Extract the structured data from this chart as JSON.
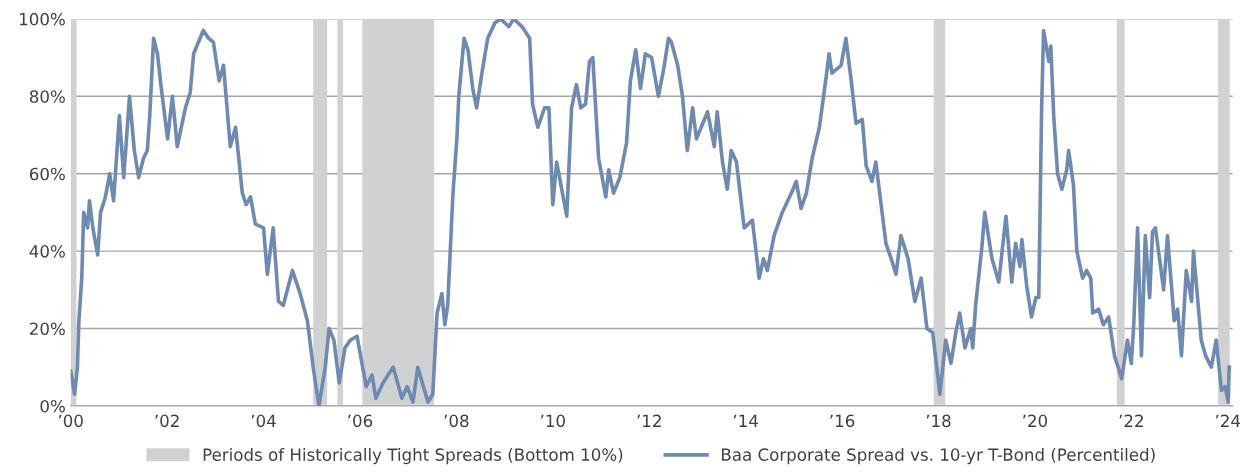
{
  "chart_data": {
    "type": "line",
    "xlim": [
      2000,
      2024.1
    ],
    "xticks": [
      {
        "value": 2000,
        "label": "’00"
      },
      {
        "value": 2002,
        "label": "’02"
      },
      {
        "value": 2004,
        "label": "’04"
      },
      {
        "value": 2006,
        "label": "’06"
      },
      {
        "value": 2008,
        "label": "’08"
      },
      {
        "value": 2010,
        "label": "’10"
      },
      {
        "value": 2012,
        "label": "’12"
      },
      {
        "value": 2014,
        "label": "’14"
      },
      {
        "value": 2016,
        "label": "’16"
      },
      {
        "value": 2018,
        "label": "’18"
      },
      {
        "value": 2020,
        "label": "’20"
      },
      {
        "value": 2022,
        "label": "’22"
      },
      {
        "value": 2024,
        "label": "’24"
      }
    ],
    "ylim": [
      0,
      100
    ],
    "yticks": [
      {
        "value": 0,
        "label": "0%"
      },
      {
        "value": 20,
        "label": "20%"
      },
      {
        "value": 40,
        "label": "40%"
      },
      {
        "value": 60,
        "label": "60%"
      },
      {
        "value": 80,
        "label": "80%"
      },
      {
        "value": 100,
        "label": "100%"
      }
    ],
    "grid": "y",
    "legend": "bottom",
    "bands": [
      {
        "axis": "x",
        "from": 2000.0,
        "to": 2000.12,
        "label": "Periods of Historically Tight Spreads (Bottom 10%)",
        "color": "#d0d1d3"
      },
      {
        "axis": "x",
        "from": 2005.03,
        "to": 2005.32,
        "color": "#d0d1d3"
      },
      {
        "axis": "x",
        "from": 2005.53,
        "to": 2005.65,
        "color": "#d0d1d3"
      },
      {
        "axis": "x",
        "from": 2006.05,
        "to": 2007.54,
        "color": "#d0d1d3"
      },
      {
        "axis": "x",
        "from": 2017.9,
        "to": 2018.14,
        "color": "#d0d1d3"
      },
      {
        "axis": "x",
        "from": 2021.7,
        "to": 2021.86,
        "color": "#d0d1d3"
      },
      {
        "axis": "x",
        "from": 2023.8,
        "to": 2024.04,
        "color": "#d0d1d3"
      }
    ],
    "series": [
      {
        "name": "Baa Corporate Spread vs. 10-yr T-Bond (Percentiled)",
        "color": "#6f8ab0",
        "x": [
          2000.0,
          2000.08,
          2000.14,
          2000.17,
          2000.23,
          2000.27,
          2000.35,
          2000.39,
          2000.46,
          2000.56,
          2000.62,
          2000.72,
          2000.81,
          2000.89,
          2001.01,
          2001.1,
          2001.22,
          2001.32,
          2001.41,
          2001.51,
          2001.59,
          2001.64,
          2001.72,
          2001.8,
          2001.88,
          2002.01,
          2002.11,
          2002.21,
          2002.38,
          2002.48,
          2002.55,
          2002.75,
          2002.86,
          2002.96,
          2003.08,
          2003.17,
          2003.31,
          2003.42,
          2003.56,
          2003.64,
          2003.73,
          2003.83,
          2004.0,
          2004.08,
          2004.2,
          2004.31,
          2004.41,
          2004.6,
          2004.76,
          2004.91,
          2005.03,
          2005.15,
          2005.28,
          2005.36,
          2005.46,
          2005.57,
          2005.69,
          2005.8,
          2005.94,
          2006.13,
          2006.25,
          2006.33,
          2006.48,
          2006.69,
          2006.87,
          2006.98,
          2007.1,
          2007.2,
          2007.41,
          2007.51,
          2007.6,
          2007.7,
          2007.76,
          2007.82,
          2007.93,
          2008.01,
          2008.05,
          2008.16,
          2008.24,
          2008.34,
          2008.42,
          2008.53,
          2008.65,
          2008.8,
          2008.92,
          2009.09,
          2009.19,
          2009.36,
          2009.52,
          2009.58,
          2009.69,
          2009.83,
          2009.92,
          2010.0,
          2010.08,
          2010.29,
          2010.39,
          2010.49,
          2010.58,
          2010.68,
          2010.76,
          2010.83,
          2010.95,
          2011.1,
          2011.16,
          2011.26,
          2011.39,
          2011.53,
          2011.61,
          2011.72,
          2011.82,
          2011.92,
          2012.05,
          2012.19,
          2012.3,
          2012.4,
          2012.46,
          2012.59,
          2012.69,
          2012.79,
          2012.9,
          2012.98,
          2013.21,
          2013.35,
          2013.41,
          2013.52,
          2013.62,
          2013.7,
          2013.81,
          2013.97,
          2014.14,
          2014.28,
          2014.37,
          2014.45,
          2014.59,
          2014.76,
          2014.95,
          2015.05,
          2015.15,
          2015.26,
          2015.38,
          2015.53,
          2015.67,
          2015.73,
          2015.79,
          2015.98,
          2016.08,
          2016.19,
          2016.29,
          2016.42,
          2016.5,
          2016.62,
          2016.7,
          2016.83,
          2016.91,
          2017.02,
          2017.12,
          2017.22,
          2017.37,
          2017.51,
          2017.64,
          2017.76,
          2017.88,
          2018.03,
          2018.15,
          2018.26,
          2018.36,
          2018.44,
          2018.55,
          2018.67,
          2018.71,
          2018.77,
          2018.9,
          2018.96,
          2019.11,
          2019.25,
          2019.4,
          2019.52,
          2019.6,
          2019.69,
          2019.73,
          2019.83,
          2019.93,
          2020.02,
          2020.08,
          2020.14,
          2020.18,
          2020.29,
          2020.33,
          2020.39,
          2020.47,
          2020.56,
          2020.66,
          2020.7,
          2020.8,
          2020.87,
          2020.99,
          2021.07,
          2021.16,
          2021.2,
          2021.32,
          2021.42,
          2021.53,
          2021.65,
          2021.8,
          2021.92,
          2022.0,
          2022.05,
          2022.13,
          2022.21,
          2022.29,
          2022.38,
          2022.44,
          2022.5,
          2022.67,
          2022.75,
          2022.89,
          2022.96,
          2023.04,
          2023.14,
          2023.25,
          2023.29,
          2023.45,
          2023.54,
          2023.66,
          2023.76,
          2023.87,
          2023.95,
          2024.01,
          2024.03
        ],
        "values": [
          9,
          3,
          10,
          22,
          33,
          50,
          46,
          53,
          46,
          39,
          50,
          54,
          60,
          53,
          75,
          59,
          80,
          66,
          59,
          64,
          66,
          75,
          95,
          91,
          82,
          69,
          80,
          67,
          77,
          81,
          91,
          97,
          95,
          94,
          84,
          88,
          67,
          72,
          55,
          52,
          54,
          47,
          46,
          34,
          46,
          27,
          26,
          35,
          29,
          22,
          10,
          0,
          10,
          20,
          17,
          6,
          15,
          17,
          18,
          5,
          8,
          2,
          6,
          10,
          2,
          5,
          1,
          10,
          1,
          3,
          24,
          29,
          21,
          26,
          55,
          69,
          80,
          95,
          92,
          82,
          77,
          86,
          95,
          99,
          100,
          98,
          100,
          98,
          95,
          78,
          72,
          77,
          77,
          52,
          63,
          49,
          77,
          83,
          77,
          78,
          89,
          90,
          64,
          54,
          61,
          55,
          59,
          68,
          84,
          92,
          82,
          91,
          90,
          80,
          87,
          95,
          94,
          88,
          80,
          66,
          77,
          69,
          76,
          67,
          76,
          63,
          56,
          66,
          63,
          46,
          48,
          33,
          38,
          35,
          44,
          50,
          55,
          58,
          51,
          55,
          64,
          72,
          85,
          91,
          86,
          88,
          95,
          84,
          73,
          74,
          62,
          58,
          63,
          50,
          42,
          38,
          34,
          44,
          38,
          27,
          33,
          20,
          19,
          3,
          17,
          11,
          19,
          24,
          15,
          20,
          15,
          26,
          41,
          50,
          38,
          32,
          49,
          32,
          42,
          36,
          43,
          31,
          23,
          28,
          28,
          77,
          97,
          89,
          93,
          75,
          60,
          56,
          61,
          66,
          57,
          40,
          33,
          35,
          33,
          24,
          25,
          21,
          23,
          13,
          7,
          17,
          11,
          21,
          46,
          13,
          44,
          28,
          45,
          46,
          30,
          44,
          22,
          25,
          13,
          35,
          27,
          40,
          17,
          13,
          10,
          17,
          4,
          5,
          1,
          10
        ]
      }
    ]
  }
}
